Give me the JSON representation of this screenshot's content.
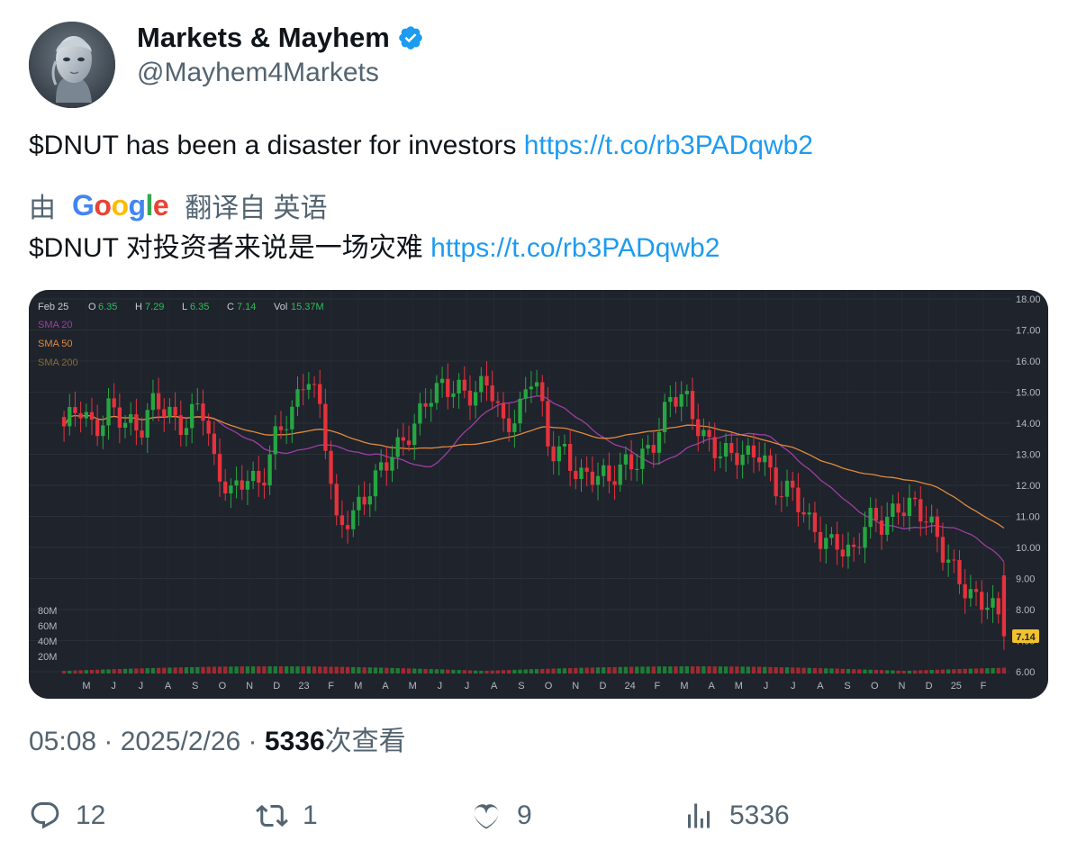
{
  "author": {
    "display_name": "Markets & Mayhem",
    "handle": "@Mayhem4Markets",
    "verified": true
  },
  "tweet": {
    "text": "$DNUT has been a disaster for investors",
    "link": "https://t.co/rb3PADqwb2"
  },
  "translation": {
    "by_label": "由",
    "provider": "Google",
    "from_label": "翻译自 英语",
    "text": "$DNUT 对投资者来说是一场灾难",
    "link": "https://t.co/rb3PADqwb2"
  },
  "chart_data": {
    "type": "candlestick",
    "header": {
      "date": "Feb 25",
      "o_label": "O",
      "o_value": "6.35",
      "h_label": "H",
      "h_value": "7.29",
      "l_label": "L",
      "l_value": "6.35",
      "c_label": "C",
      "c_value": "7.14",
      "vol_label": "Vol",
      "vol_value": "15.37M"
    },
    "legend": [
      {
        "name": "SMA 20",
        "color": "#9c3fa3"
      },
      {
        "name": "SMA 50",
        "color": "#e08a3c"
      },
      {
        "name": "SMA 200",
        "color": "#8c6a2e"
      }
    ],
    "y_ticks": [
      "18.00",
      "17.00",
      "16.00",
      "15.00",
      "14.00",
      "13.00",
      "12.00",
      "11.00",
      "10.00",
      "9.00",
      "8.00",
      "7.00",
      "6.00"
    ],
    "y_range": [
      6,
      18
    ],
    "volume_ticks": [
      "80M",
      "60M",
      "40M",
      "20M"
    ],
    "x_ticks": [
      "M",
      "J",
      "J",
      "A",
      "S",
      "O",
      "N",
      "D",
      "23",
      "F",
      "M",
      "A",
      "M",
      "J",
      "J",
      "A",
      "S",
      "O",
      "N",
      "D",
      "24",
      "F",
      "M",
      "A",
      "M",
      "J",
      "J",
      "A",
      "S",
      "O",
      "N",
      "D",
      "25",
      "F"
    ],
    "last_price_label": "7.14",
    "colors": {
      "up": "#26a641",
      "down": "#e5323c",
      "background": "#1f232c",
      "last_price": "#f2c12e"
    },
    "close_path_approx": [
      13.9,
      14.3,
      13.6,
      14.8,
      14.2,
      13.5,
      14.6,
      14.4,
      14.1,
      14.7,
      12.2,
      11.8,
      12.6,
      12.0,
      13.4,
      14.2,
      15.9,
      14.5,
      10.4,
      10.8,
      11.9,
      12.9,
      13.1,
      13.5,
      14.9,
      15.5,
      15.1,
      14.6,
      15.3,
      14.1,
      14.5,
      15.6,
      12.9,
      13.2,
      12.5,
      12.3,
      11.9,
      12.7,
      13.1,
      13.5,
      14.6,
      14.7,
      13.9,
      13.3,
      12.8,
      12.7,
      13.2,
      12.1,
      11.8,
      10.6,
      10.2,
      10.4,
      9.8,
      10.7,
      10.6,
      11.5,
      11.6,
      10.7,
      9.6,
      9.1,
      8.6,
      8.2,
      7.14
    ],
    "volume_spike_label": ""
  },
  "timestamp": {
    "time": "05:08",
    "sep": " · ",
    "date": "2025/2/26",
    "views_count": "5336",
    "views_label": "次查看"
  },
  "actions": {
    "replies": "12",
    "reposts": "1",
    "likes": "9",
    "views": "5336"
  }
}
